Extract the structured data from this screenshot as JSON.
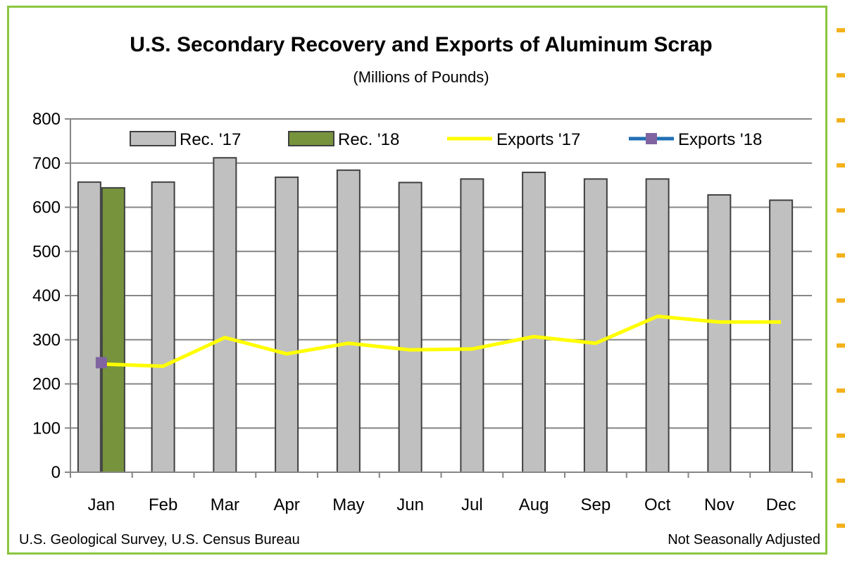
{
  "chart_data": {
    "type": "bar",
    "title": "U.S. Secondary Recovery and Exports of Aluminum Scrap",
    "subtitle": "(Millions of Pounds)",
    "categories": [
      "Jan",
      "Feb",
      "Mar",
      "Apr",
      "May",
      "Jun",
      "Jul",
      "Aug",
      "Sep",
      "Oct",
      "Nov",
      "Dec"
    ],
    "ylim": [
      0,
      800
    ],
    "yticks": [
      0,
      100,
      200,
      300,
      400,
      500,
      600,
      700,
      800
    ],
    "grid": true,
    "legend_position": "top",
    "series": [
      {
        "name": "Rec. '17",
        "kind": "bar",
        "color": "#c0c0c0",
        "values": [
          657,
          657,
          712,
          668,
          684,
          656,
          664,
          679,
          664,
          664,
          628,
          616
        ]
      },
      {
        "name": "Rec. '18",
        "kind": "bar",
        "color": "#77933c",
        "values": [
          644,
          null,
          null,
          null,
          null,
          null,
          null,
          null,
          null,
          null,
          null,
          null
        ]
      },
      {
        "name": "Exports '17",
        "kind": "line",
        "color": "#ffff00",
        "values": [
          245,
          240,
          305,
          268,
          292,
          277,
          279,
          307,
          292,
          353,
          340,
          340
        ]
      },
      {
        "name": "Exports '18",
        "kind": "line",
        "color": "#1f6fb5",
        "marker_color": "#8064a2",
        "values": [
          248,
          null,
          null,
          null,
          null,
          null,
          null,
          null,
          null,
          null,
          null,
          null
        ]
      }
    ],
    "source": "U.S. Geological Survey, U.S. Census Bureau",
    "note": "Not Seasonally Adjusted"
  },
  "colors": {
    "frame": "#8cc63f",
    "grid": "#868686",
    "bar_outline": "#404040",
    "edge_accent": "#f3b21c"
  }
}
